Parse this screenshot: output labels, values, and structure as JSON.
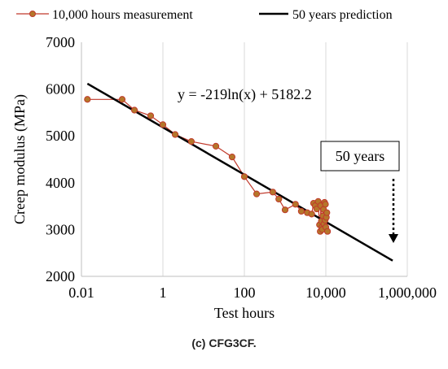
{
  "caption": "(c) CFG3CF.",
  "chart_data": {
    "type": "scatter",
    "xscale": "log",
    "xlabel": "Test hours",
    "ylabel": "Creep modulus (MPa)",
    "xlim": [
      0.01,
      1000000
    ],
    "ylim": [
      2000,
      7000
    ],
    "xticks": [
      0.01,
      1,
      100,
      10000,
      1000000
    ],
    "xtick_labels": [
      "0.01",
      "1",
      "100",
      "10,000",
      "1,000,000"
    ],
    "yticks": [
      2000,
      3000,
      4000,
      5000,
      6000,
      7000
    ],
    "ytick_labels": [
      "2000",
      "3000",
      "4000",
      "5000",
      "6000",
      "7000"
    ],
    "grid": "vertical",
    "legend_position": "top",
    "equation": "y = -219ln(x) + 5182.2",
    "annotation": "50 years",
    "series": [
      {
        "name": "10,000 hours measurement",
        "color": "#c0392b",
        "marker_color": "#b5762a",
        "points": [
          [
            0.014,
            5780
          ],
          [
            0.1,
            5780
          ],
          [
            0.2,
            5550
          ],
          [
            0.5,
            5430
          ],
          [
            1.0,
            5240
          ],
          [
            2.0,
            5030
          ],
          [
            5.0,
            4880
          ],
          [
            20.0,
            4780
          ],
          [
            50.0,
            4550
          ],
          [
            100.0,
            4130
          ],
          [
            200.0,
            3760
          ],
          [
            500.0,
            3800
          ],
          [
            700.0,
            3650
          ],
          [
            1000.0,
            3420
          ],
          [
            1800.0,
            3540
          ],
          [
            2500.0,
            3390
          ],
          [
            3500.0,
            3360
          ],
          [
            4500.0,
            3330
          ],
          [
            5000.0,
            3560
          ],
          [
            5500.0,
            3510
          ],
          [
            6000.0,
            3440
          ],
          [
            6500.0,
            3600
          ],
          [
            7000.0,
            3100
          ],
          [
            7300.0,
            2960
          ],
          [
            7500.0,
            3510
          ],
          [
            7800.0,
            3180
          ],
          [
            8000.0,
            3050
          ],
          [
            8200.0,
            3000
          ],
          [
            8500.0,
            3290
          ],
          [
            8800.0,
            3430
          ],
          [
            9000.0,
            3120
          ],
          [
            9300.0,
            3580
          ],
          [
            9600.0,
            3200
          ],
          [
            9800.0,
            3540
          ],
          [
            10000.0,
            3050
          ],
          [
            10300.0,
            3260
          ],
          [
            10600.0,
            3360
          ],
          [
            11000.0,
            2960
          ]
        ]
      },
      {
        "name": "50 years prediction",
        "color": "#000000",
        "x": [
          0.014,
          438000
        ],
        "y": [
          6116,
          2336
        ]
      }
    ]
  }
}
